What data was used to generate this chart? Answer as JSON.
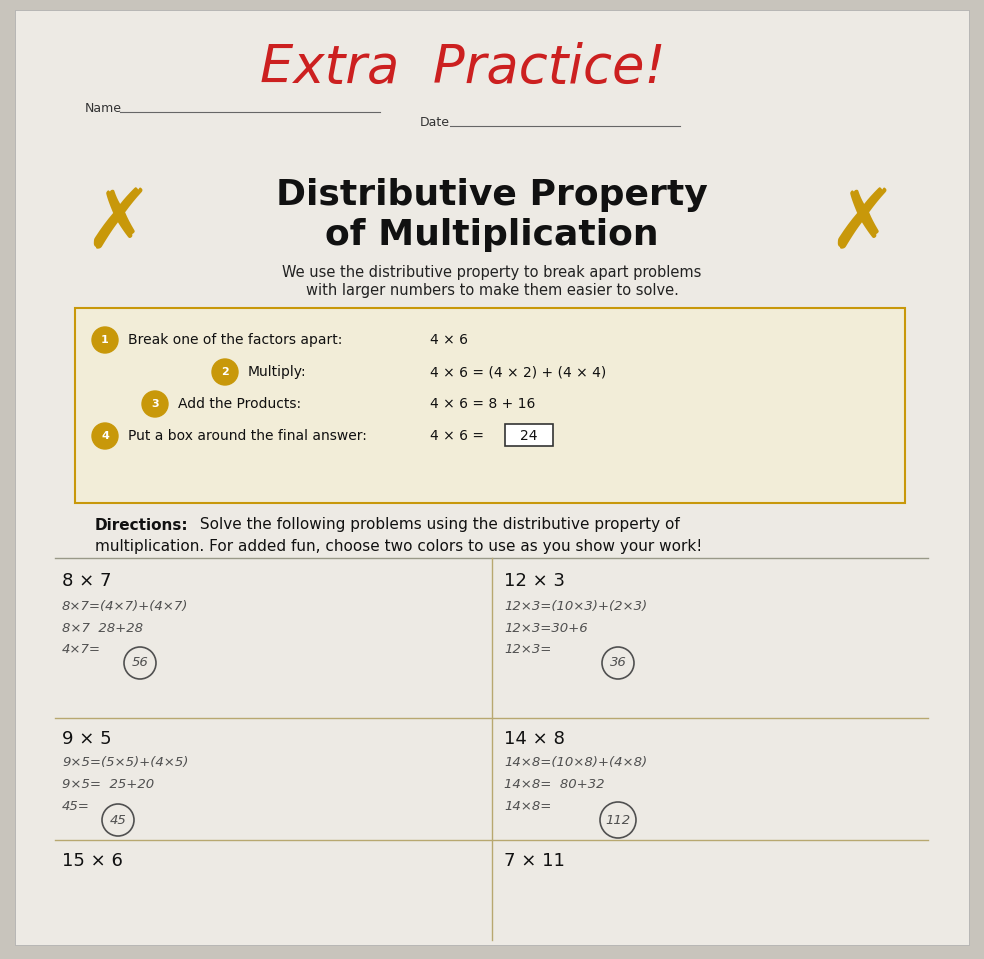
{
  "bg_color": "#c8c4bc",
  "paper_color": "#edeae4",
  "handwritten_title": "Extra  Practice!",
  "handwritten_title_color": "#cc2020",
  "name_label": "Name",
  "date_label": "Date",
  "main_title_line1": "Distributive Property",
  "main_title_line2": "of Multiplication",
  "main_title_color": "#111111",
  "subtitle_line1": "We use the distributive property to break apart problems",
  "subtitle_line2": "with larger numbers to make them easier to solve.",
  "subtitle_color": "#222222",
  "x_color": "#c8980a",
  "step_num_color": "#c8980a",
  "box_edge_color": "#c8980a",
  "steps": [
    {
      "num": "1",
      "label": "Break one of the factors apart:",
      "example": "4 × 6",
      "indent": 0.13
    },
    {
      "num": "2",
      "label": "Multiply:",
      "example": "4 × 6 = (4 × 2) + (4 × 4)",
      "indent": 0.28
    },
    {
      "num": "3",
      "label": "Add the Products:",
      "example": "4 × 6 = 8 + 16",
      "indent": 0.19
    },
    {
      "num": "4",
      "label": "Put a box around the final answer:",
      "example": "4 × 6 = ",
      "indent": 0.13
    }
  ],
  "directions_bold": "Directions:",
  "directions_text1": " Solve the following problems using the distributive property of",
  "directions_text2": "multiplication. For added fun, choose two colors to use as you show your work!",
  "problems": [
    {
      "label": "8 × 7",
      "col": 0,
      "row": 0
    },
    {
      "label": "12 × 3",
      "col": 1,
      "row": 0
    },
    {
      "label": "9 × 5",
      "col": 0,
      "row": 1
    },
    {
      "label": "14 × 8",
      "col": 1,
      "row": 1
    },
    {
      "label": "15 × 6",
      "col": 0,
      "row": 2
    },
    {
      "label": "7 × 11",
      "col": 1,
      "row": 2
    }
  ]
}
